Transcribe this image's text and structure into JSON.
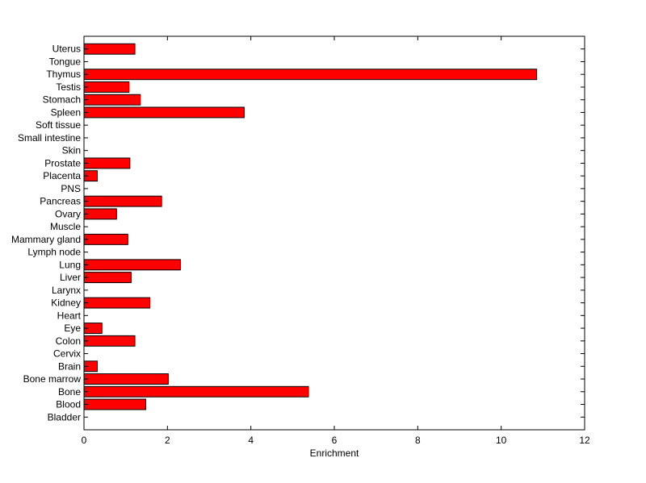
{
  "chart_data": {
    "type": "bar",
    "orientation": "horizontal",
    "title": "",
    "xlabel": "Enrichment",
    "ylabel": "",
    "xlim": [
      0,
      12
    ],
    "xticks": [
      0,
      2,
      4,
      6,
      8,
      10,
      12
    ],
    "categories": [
      "Bladder",
      "Blood",
      "Bone",
      "Bone marrow",
      "Brain",
      "Cervix",
      "Colon",
      "Eye",
      "Heart",
      "Kidney",
      "Larynx",
      "Liver",
      "Lung",
      "Lymph node",
      "Mammary gland",
      "Muscle",
      "Ovary",
      "Pancreas",
      "PNS",
      "Placenta",
      "Prostate",
      "Skin",
      "Small intestine",
      "Soft tissue",
      "Spleen",
      "Stomach",
      "Testis",
      "Thymus",
      "Tongue",
      "Uterus"
    ],
    "values": [
      0,
      1.48,
      5.38,
      2.02,
      0.32,
      0,
      1.22,
      0.43,
      0,
      1.58,
      0,
      1.13,
      2.31,
      0,
      1.05,
      0,
      0.78,
      1.86,
      0,
      0.32,
      1.1,
      0,
      0,
      0,
      3.84,
      1.35,
      1.08,
      10.85,
      0,
      1.22
    ],
    "bar_color": "#ff0000",
    "edge_color": "#000000",
    "grid": false,
    "legend": false
  }
}
